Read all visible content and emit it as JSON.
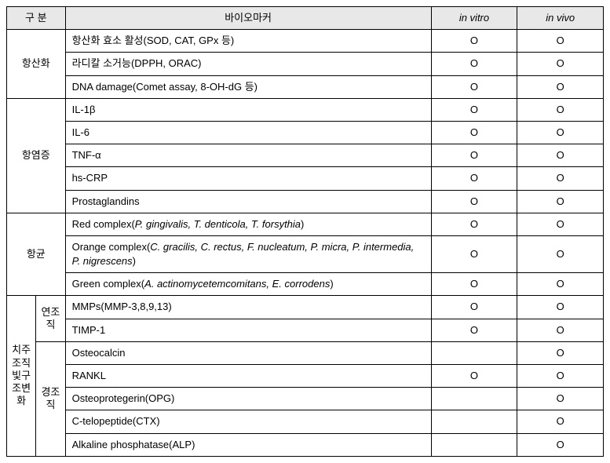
{
  "headers": {
    "category": "구 분",
    "biomarker": "바이오마커",
    "in_vitro": "in vitro",
    "in_vivo": "in vivo"
  },
  "mark": "O",
  "categories": {
    "antioxidant": "항산화",
    "antiinflam": "항염증",
    "antibact": "항균",
    "periodontal": "치주조직빛구조변화",
    "soft_tissue": "연조직",
    "hard_tissue": "경조직"
  },
  "rows": {
    "r0": {
      "bio_plain": "항산화 효소 활성(SOD, CAT, GPx 등)",
      "vitro": "O",
      "vivo": "O"
    },
    "r1": {
      "bio_plain": "라디칼 소거능(DPPH, ORAC)",
      "vitro": "O",
      "vivo": "O"
    },
    "r2": {
      "bio_plain": "DNA damage(Comet assay, 8-OH-dG 등)",
      "vitro": "O",
      "vivo": "O"
    },
    "r3": {
      "bio_plain": "IL-1β",
      "vitro": "O",
      "vivo": "O"
    },
    "r4": {
      "bio_plain": "IL-6",
      "vitro": "O",
      "vivo": "O"
    },
    "r5": {
      "bio_plain": "TNF-α",
      "vitro": "O",
      "vivo": "O"
    },
    "r6": {
      "bio_plain": "hs-CRP",
      "vitro": "O",
      "vivo": "O"
    },
    "r7": {
      "bio_plain": "Prostaglandins",
      "vitro": "O",
      "vivo": "O"
    },
    "r8": {
      "pre": "Red complex(",
      "it": "P. gingivalis, T. denticola, T. forsythia",
      "post": ")",
      "vitro": "O",
      "vivo": "O"
    },
    "r9": {
      "pre": "Orange complex(",
      "it": "C. gracilis, C. rectus, F. nucleatum, P. micra, P. intermedia, P. nigrescens",
      "post": ")",
      "vitro": "O",
      "vivo": "O"
    },
    "r10": {
      "pre": "Green complex(",
      "it": "A. actinomycetemcomitans, E. corrodens",
      "post": ")",
      "vitro": "O",
      "vivo": "O"
    },
    "r11": {
      "bio_plain": "MMPs(MMP-3,8,9,13)",
      "vitro": "O",
      "vivo": "O"
    },
    "r12": {
      "bio_plain": "TIMP-1",
      "vitro": "O",
      "vivo": "O"
    },
    "r13": {
      "bio_plain": "Osteocalcin",
      "vitro": "",
      "vivo": "O"
    },
    "r14": {
      "bio_plain": "RANKL",
      "vitro": "O",
      "vivo": "O"
    },
    "r15": {
      "bio_plain": "Osteoprotegerin(OPG)",
      "vitro": "",
      "vivo": "O"
    },
    "r16": {
      "bio_plain": "C-telopeptide(CTX)",
      "vitro": "",
      "vivo": "O"
    },
    "r17": {
      "bio_plain": "Alkaline phosphatase(ALP)",
      "vitro": "",
      "vivo": "O"
    }
  },
  "style": {
    "header_bg": "#e8e8e8",
    "border_color": "#000000",
    "font_size_pt": 10
  }
}
